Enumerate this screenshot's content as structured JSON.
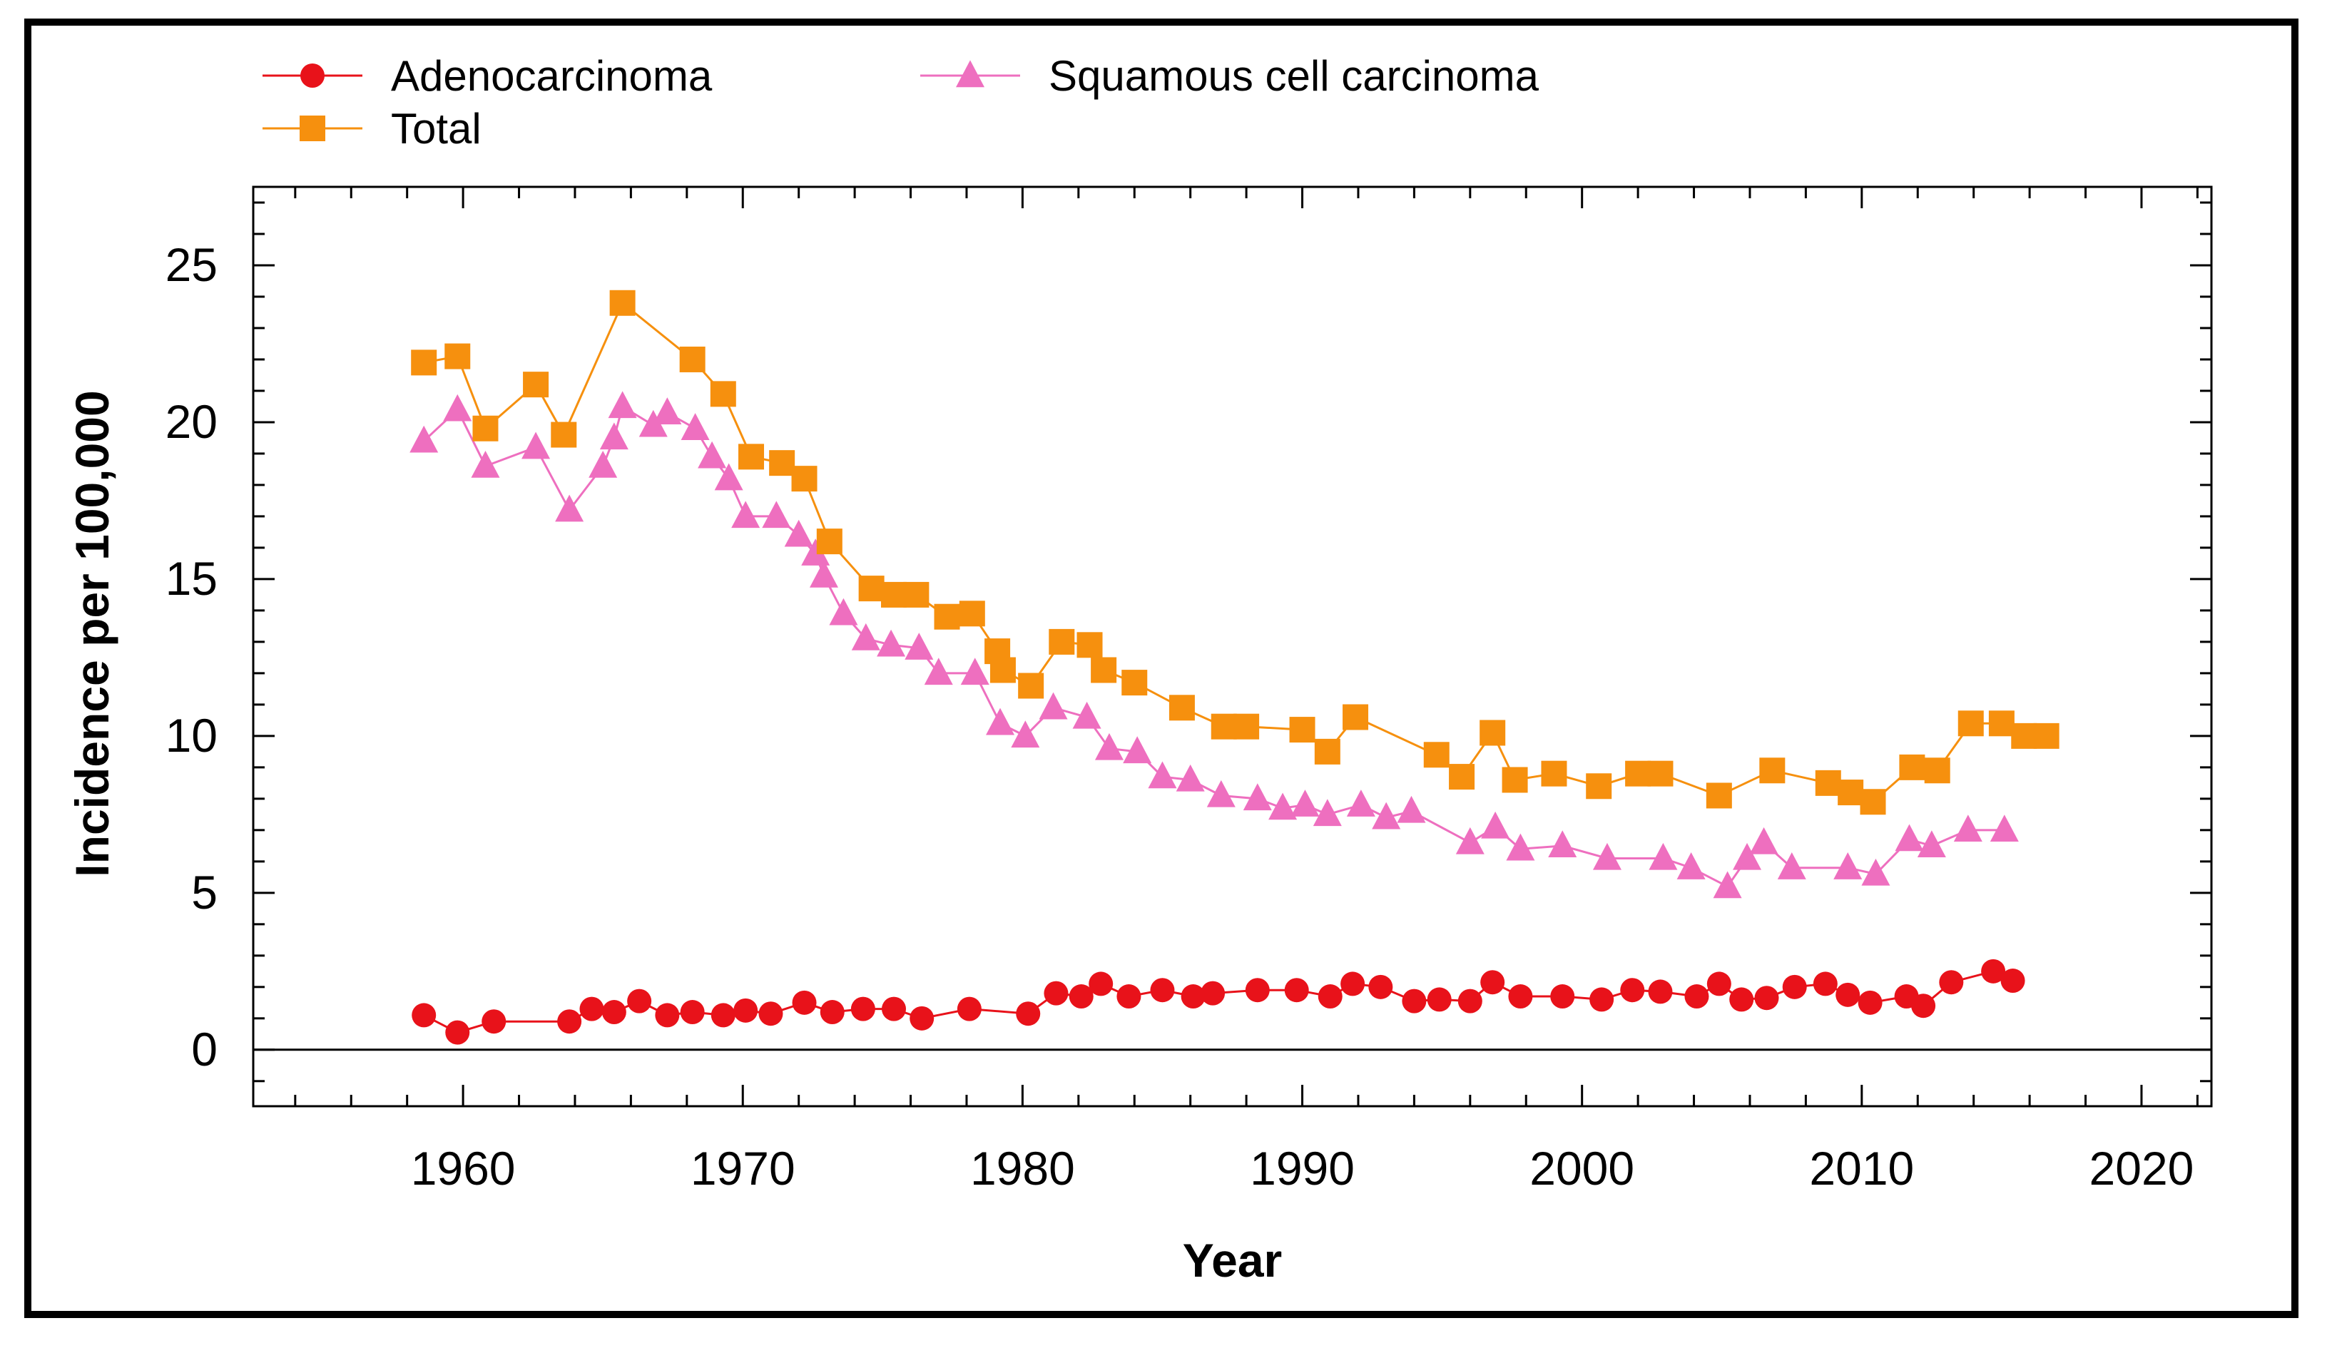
{
  "chart_data": {
    "type": "line",
    "title": "",
    "xlabel": "Year",
    "ylabel": "Incidence per 100,000",
    "xlim": [
      1952.5,
      2022.5
    ],
    "ylim": [
      -1.8,
      27.5
    ],
    "x_ticks": [
      1960,
      1970,
      1980,
      1990,
      2000,
      2010,
      2020
    ],
    "y_ticks": [
      0,
      5,
      10,
      15,
      20,
      25
    ],
    "grid": false,
    "legend_position": "top-left",
    "reference_line_y": 0,
    "series": [
      {
        "name": "Adenocarcinoma",
        "color": "#e8121a",
        "marker": "circle",
        "points": [
          [
            1958.6,
            1.1
          ],
          [
            1959.8,
            0.55
          ],
          [
            1961.1,
            0.9
          ],
          [
            1963.8,
            0.9
          ],
          [
            1964.6,
            1.3
          ],
          [
            1965.4,
            1.2
          ],
          [
            1966.3,
            1.55
          ],
          [
            1967.3,
            1.1
          ],
          [
            1968.2,
            1.2
          ],
          [
            1969.3,
            1.1
          ],
          [
            1970.1,
            1.25
          ],
          [
            1971.0,
            1.15
          ],
          [
            1972.2,
            1.5
          ],
          [
            1973.2,
            1.2
          ],
          [
            1974.3,
            1.3
          ],
          [
            1975.4,
            1.3
          ],
          [
            1976.4,
            1.0
          ],
          [
            1978.1,
            1.3
          ],
          [
            1980.2,
            1.15
          ],
          [
            1981.2,
            1.8
          ],
          [
            1982.1,
            1.7
          ],
          [
            1982.8,
            2.1
          ],
          [
            1983.8,
            1.7
          ],
          [
            1985.0,
            1.9
          ],
          [
            1986.1,
            1.7
          ],
          [
            1986.8,
            1.8
          ],
          [
            1988.4,
            1.9
          ],
          [
            1989.8,
            1.9
          ],
          [
            1991.0,
            1.7
          ],
          [
            1991.8,
            2.1
          ],
          [
            1992.8,
            2.0
          ],
          [
            1994.0,
            1.55
          ],
          [
            1994.9,
            1.6
          ],
          [
            1996.0,
            1.55
          ],
          [
            1996.8,
            2.15
          ],
          [
            1997.8,
            1.7
          ],
          [
            1999.3,
            1.7
          ],
          [
            2000.7,
            1.6
          ],
          [
            2001.8,
            1.9
          ],
          [
            2002.8,
            1.85
          ],
          [
            2004.1,
            1.7
          ],
          [
            2004.9,
            2.1
          ],
          [
            2005.7,
            1.6
          ],
          [
            2006.6,
            1.65
          ],
          [
            2007.6,
            2.0
          ],
          [
            2008.7,
            2.1
          ],
          [
            2009.5,
            1.75
          ],
          [
            2010.3,
            1.5
          ],
          [
            2011.6,
            1.7
          ],
          [
            2012.2,
            1.4
          ],
          [
            2013.2,
            2.15
          ],
          [
            2014.7,
            2.5
          ],
          [
            2015.4,
            2.2
          ]
        ]
      },
      {
        "name": "Squamous cell carcinoma",
        "color": "#ee6fbf",
        "marker": "triangle",
        "points": [
          [
            1958.6,
            19.4
          ],
          [
            1959.8,
            20.4
          ],
          [
            1960.8,
            18.6
          ],
          [
            1962.6,
            19.2
          ],
          [
            1963.8,
            17.2
          ],
          [
            1965.0,
            18.6
          ],
          [
            1965.4,
            19.5
          ],
          [
            1965.7,
            20.5
          ],
          [
            1966.8,
            19.9
          ],
          [
            1967.3,
            20.3
          ],
          [
            1968.3,
            19.8
          ],
          [
            1968.9,
            18.9
          ],
          [
            1969.5,
            18.2
          ],
          [
            1970.1,
            17.0
          ],
          [
            1971.2,
            17.0
          ],
          [
            1972.0,
            16.4
          ],
          [
            1972.6,
            15.8
          ],
          [
            1972.9,
            15.1
          ],
          [
            1973.6,
            13.9
          ],
          [
            1974.4,
            13.1
          ],
          [
            1975.3,
            12.9
          ],
          [
            1976.3,
            12.8
          ],
          [
            1977.0,
            12.0
          ],
          [
            1978.3,
            12.0
          ],
          [
            1979.2,
            10.4
          ],
          [
            1980.1,
            10.0
          ],
          [
            1981.1,
            10.9
          ],
          [
            1982.3,
            10.6
          ],
          [
            1983.1,
            9.6
          ],
          [
            1984.1,
            9.5
          ],
          [
            1985.0,
            8.7
          ],
          [
            1986.0,
            8.6
          ],
          [
            1987.1,
            8.1
          ],
          [
            1988.4,
            8.0
          ],
          [
            1989.3,
            7.7
          ],
          [
            1990.1,
            7.8
          ],
          [
            1990.9,
            7.5
          ],
          [
            1992.1,
            7.8
          ],
          [
            1993.0,
            7.4
          ],
          [
            1993.9,
            7.6
          ],
          [
            1996.0,
            6.6
          ],
          [
            1996.9,
            7.1
          ],
          [
            1997.8,
            6.4
          ],
          [
            1999.3,
            6.5
          ],
          [
            2000.9,
            6.1
          ],
          [
            2002.9,
            6.1
          ],
          [
            2003.9,
            5.8
          ],
          [
            2005.2,
            5.2
          ],
          [
            2005.9,
            6.1
          ],
          [
            2006.5,
            6.6
          ],
          [
            2007.5,
            5.8
          ],
          [
            2009.5,
            5.8
          ],
          [
            2010.5,
            5.6
          ],
          [
            2011.7,
            6.7
          ],
          [
            2012.5,
            6.5
          ],
          [
            2013.8,
            7.0
          ],
          [
            2015.1,
            7.0
          ]
        ]
      },
      {
        "name": "Total",
        "color": "#f6900e",
        "marker": "square",
        "points": [
          [
            1958.6,
            21.9
          ],
          [
            1959.8,
            22.1
          ],
          [
            1960.8,
            19.8
          ],
          [
            1962.6,
            21.2
          ],
          [
            1963.6,
            19.6
          ],
          [
            1965.7,
            23.8
          ],
          [
            1968.2,
            22.0
          ],
          [
            1969.3,
            20.9
          ],
          [
            1970.3,
            18.9
          ],
          [
            1971.4,
            18.7
          ],
          [
            1972.2,
            18.2
          ],
          [
            1973.1,
            16.2
          ],
          [
            1974.6,
            14.7
          ],
          [
            1975.4,
            14.5
          ],
          [
            1976.2,
            14.5
          ],
          [
            1977.3,
            13.8
          ],
          [
            1978.2,
            13.9
          ],
          [
            1979.1,
            12.7
          ],
          [
            1979.3,
            12.1
          ],
          [
            1980.3,
            11.6
          ],
          [
            1981.4,
            13.0
          ],
          [
            1982.4,
            12.9
          ],
          [
            1982.9,
            12.1
          ],
          [
            1984.0,
            11.7
          ],
          [
            1985.7,
            10.9
          ],
          [
            1987.2,
            10.3
          ],
          [
            1988.0,
            10.3
          ],
          [
            1990.0,
            10.2
          ],
          [
            1990.9,
            9.5
          ],
          [
            1991.9,
            10.6
          ],
          [
            1994.8,
            9.4
          ],
          [
            1995.7,
            8.7
          ],
          [
            1996.8,
            10.1
          ],
          [
            1997.6,
            8.6
          ],
          [
            1999.0,
            8.8
          ],
          [
            2000.6,
            8.4
          ],
          [
            2002.0,
            8.8
          ],
          [
            2002.8,
            8.8
          ],
          [
            2004.9,
            8.1
          ],
          [
            2006.8,
            8.9
          ],
          [
            2008.8,
            8.5
          ],
          [
            2009.6,
            8.2
          ],
          [
            2010.4,
            7.9
          ],
          [
            2011.8,
            9.0
          ],
          [
            2012.7,
            8.9
          ],
          [
            2013.9,
            10.4
          ],
          [
            2015.0,
            10.4
          ],
          [
            2015.8,
            10.0
          ],
          [
            2016.6,
            10.0
          ]
        ]
      }
    ],
    "legend": [
      {
        "label": "Adenocarcinoma",
        "color": "#e8121a",
        "marker": "circle"
      },
      {
        "label": "Total",
        "color": "#f6900e",
        "marker": "square"
      },
      {
        "label": "Squamous cell carcinoma",
        "color": "#ee6fbf",
        "marker": "triangle"
      }
    ]
  }
}
